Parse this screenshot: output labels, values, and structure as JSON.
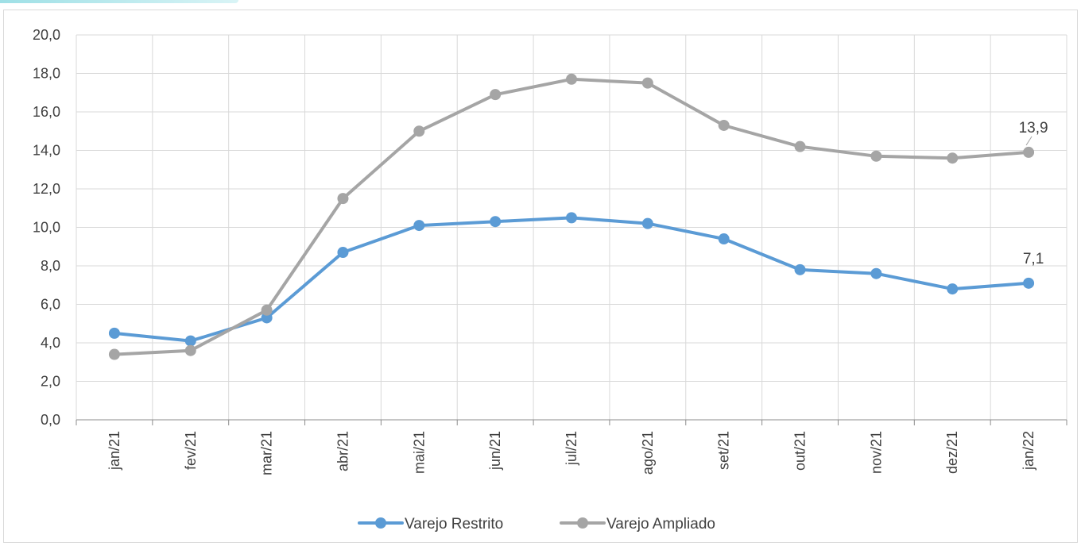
{
  "chart_data": {
    "type": "line",
    "title": "",
    "xlabel": "",
    "ylabel": "",
    "categories": [
      "jan/21",
      "fev/21",
      "mar/21",
      "abr/21",
      "mai/21",
      "jun/21",
      "jul/21",
      "ago/21",
      "set/21",
      "out/21",
      "nov/21",
      "dez/21",
      "jan/22"
    ],
    "ylim": [
      0,
      20
    ],
    "ytick_labels": [
      "0,0",
      "2,0",
      "4,0",
      "6,0",
      "8,0",
      "10,0",
      "12,0",
      "14,0",
      "16,0",
      "18,0",
      "20,0"
    ],
    "grid": true,
    "legend_position": "bottom",
    "series": [
      {
        "name": "Varejo Restrito",
        "color": "#5b9bd5",
        "values": [
          4.5,
          4.1,
          5.3,
          8.7,
          10.1,
          10.3,
          10.5,
          10.2,
          9.4,
          7.8,
          7.6,
          6.8,
          7.1
        ],
        "end_label": "7,1"
      },
      {
        "name": "Varejo Ampliado",
        "color": "#a5a5a5",
        "values": [
          3.4,
          3.6,
          5.7,
          11.5,
          15.0,
          16.9,
          17.7,
          17.5,
          15.3,
          14.2,
          13.7,
          13.6,
          13.9
        ],
        "end_label": "13,9"
      }
    ]
  }
}
